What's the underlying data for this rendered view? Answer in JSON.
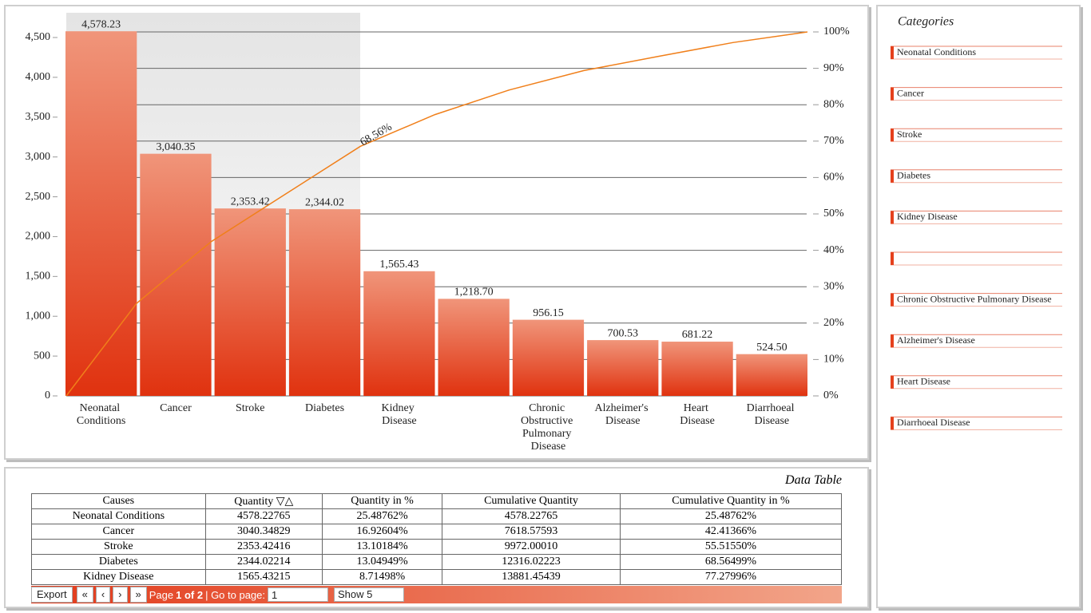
{
  "chart_data": {
    "type": "pareto",
    "categories": [
      "Neonatal Conditions",
      "Cancer",
      "Stroke",
      "Diabetes",
      "Kidney Disease",
      null,
      "Chronic Obstructive Pulmonary Disease",
      "Alzheimer's Disease",
      "Heart Disease",
      "Diarrhoeal Disease"
    ],
    "values": [
      4578.23,
      3040.35,
      2353.42,
      2344.02,
      1565.43,
      1218.7,
      956.15,
      700.53,
      681.22,
      524.5
    ],
    "value_labels": [
      "4,578.23",
      "3,040.35",
      "2,353.42",
      "2,344.02",
      "1,565.43",
      "1,218.70",
      "956.15",
      "700.53",
      "681.22",
      "524.50"
    ],
    "color": "#e5401c",
    "cumulative_percent": [
      25.48762,
      42.41366,
      55.5155,
      68.56499,
      77.27996,
      84.065,
      89.388,
      93.288,
      97.08,
      100
    ],
    "line_color": "#f07f1a",
    "line_axis": "y2",
    "annotation": {
      "index": 3,
      "text": "68.56%"
    },
    "ylim": [
      0,
      4600
    ],
    "yticks": [
      0,
      500,
      {
        "value": 1000,
        "label": "1,000"
      },
      {
        "value": 1500,
        "label": "1,500"
      },
      {
        "value": 2000,
        "label": "2,000"
      },
      {
        "value": 2500,
        "label": "2,500"
      },
      {
        "value": 3000,
        "label": "3,000"
      },
      {
        "value": 3500,
        "label": "3,500"
      },
      {
        "value": 4000,
        "label": "4,000"
      },
      {
        "value": 4500,
        "label": "4,500"
      }
    ],
    "y2lim": [
      0,
      100
    ],
    "y2ticks": [
      {
        "value": 0,
        "label": "0%"
      },
      {
        "value": 10,
        "label": "10%"
      },
      {
        "value": 20,
        "label": "20%"
      },
      {
        "value": 30,
        "label": "30%"
      },
      {
        "value": 40,
        "label": "40%"
      },
      {
        "value": 50,
        "label": "50%"
      },
      {
        "value": 60,
        "label": "60%"
      },
      {
        "value": 70,
        "label": "70%"
      },
      {
        "value": 80,
        "label": "80%"
      },
      {
        "value": 90,
        "label": "90%"
      },
      {
        "value": 100,
        "label": "100%"
      }
    ],
    "grid": true
  },
  "legend": {
    "title": "Categories"
  },
  "data_table": {
    "title": "Data Table",
    "columns": [
      "Causes",
      "Quantity ▽△",
      "Quantity in %",
      "Cumulative Quantity",
      "Cumulative Quantity in %"
    ],
    "rows": [
      [
        "Neonatal Conditions",
        "4578.22765",
        "25.48762%",
        "4578.22765",
        "25.48762%"
      ],
      [
        "Cancer",
        "3040.34829",
        "16.92604%",
        "7618.57593",
        "42.41366%"
      ],
      [
        "Stroke",
        "2353.42416",
        "13.10184%",
        "9972.00010",
        "55.51550%"
      ],
      [
        "Diabetes",
        "2344.02214",
        "13.04949%",
        "12316.02223",
        "68.56499%"
      ],
      [
        "Kidney Disease",
        "1565.43215",
        "8.71498%",
        "13881.45439",
        "77.27996%"
      ]
    ]
  },
  "pagination": {
    "export": "Export",
    "first": "«",
    "prev": "‹",
    "next": "›",
    "last": "»",
    "page_label": "Page",
    "page_value": "1 of 2",
    "goto_label": "| Go to page:",
    "goto_input": "1",
    "page_size": "Show 5"
  }
}
